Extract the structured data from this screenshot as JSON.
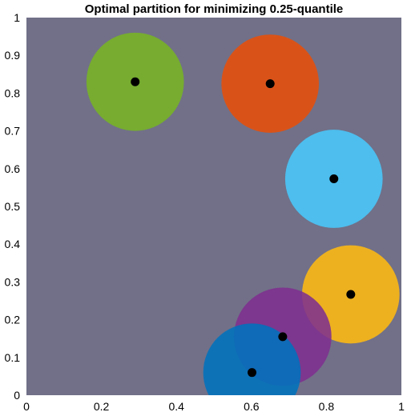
{
  "chart_data": {
    "type": "scatter",
    "title": "Optimal partition for minimizing 0.25-quantile",
    "xlabel": "",
    "ylabel": "",
    "xlim": [
      0,
      1
    ],
    "ylim": [
      0,
      1
    ],
    "xticks": [
      "0",
      "0.2",
      "0.4",
      "0.6",
      "0.8",
      "1"
    ],
    "yticks": [
      "0",
      "0.1",
      "0.2",
      "0.3",
      "0.4",
      "0.5",
      "0.6",
      "0.7",
      "0.8",
      "0.9",
      "1"
    ],
    "grid": false,
    "background_color": "#717088",
    "disk_radius": 0.13,
    "points": [
      {
        "x": 0.29,
        "y": 0.83,
        "color": "#77ac30"
      },
      {
        "x": 0.65,
        "y": 0.825,
        "color": "#d95319"
      },
      {
        "x": 0.82,
        "y": 0.573,
        "color": "#4dbeee"
      },
      {
        "x": 0.865,
        "y": 0.267,
        "color": "#edb120"
      },
      {
        "x": 0.6835,
        "y": 0.155,
        "color": "#7e2f8e"
      },
      {
        "x": 0.6015,
        "y": 0.06,
        "color": "#0072bd"
      }
    ],
    "center_marker_color": "#000000"
  }
}
